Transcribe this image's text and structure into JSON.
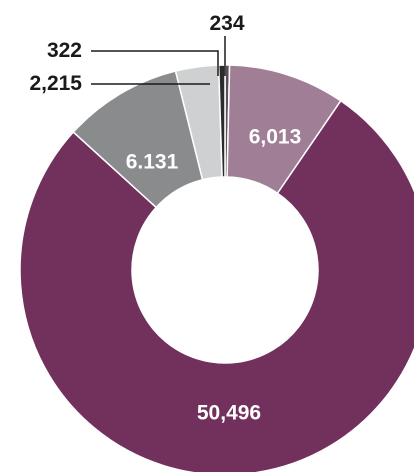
{
  "chart_data": {
    "type": "pie",
    "categories": [
      "234",
      "6,013",
      "50,496",
      "6.131",
      "2,215",
      "322"
    ],
    "values": [
      234,
      6013,
      50496,
      6131,
      2215,
      322
    ],
    "data_labels": [
      "234",
      "6,013",
      "50,496",
      "6.131",
      "2,215",
      "322"
    ],
    "colors": [
      "#5c4e5c",
      "#a07e96",
      "#72305c",
      "#8a8b8c",
      "#cfd0d1",
      "#2b2b2b"
    ],
    "hole": "donut",
    "legend": "none"
  }
}
